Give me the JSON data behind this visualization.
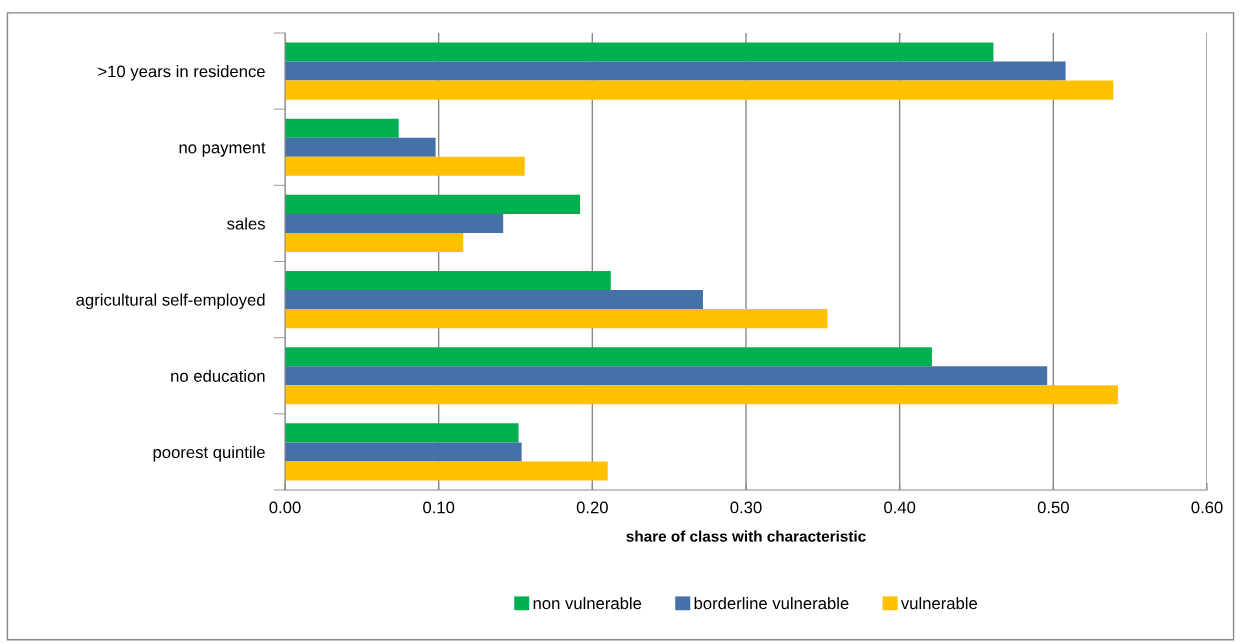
{
  "chart_data": {
    "type": "bar",
    "orientation": "horizontal",
    "xlabel": "share of class with characteristic",
    "categories": [
      ">10 years in residence",
      "no payment",
      "sales",
      "agricultural self-employed",
      "no education",
      "poorest quintile"
    ],
    "series": [
      {
        "name": "non vulnerable",
        "color": "#00b050",
        "values": [
          0.461,
          0.074,
          0.192,
          0.212,
          0.421,
          0.152
        ]
      },
      {
        "name": "borderline vulnerable",
        "color": "#4472a8",
        "values": [
          0.508,
          0.098,
          0.142,
          0.272,
          0.496,
          0.154
        ]
      },
      {
        "name": "vulnerable",
        "color": "#ffc000",
        "values": [
          0.539,
          0.156,
          0.116,
          0.353,
          0.542,
          0.21
        ]
      }
    ],
    "xlim": [
      0,
      0.6
    ],
    "xticks": [
      {
        "value": 0,
        "label": "0.00"
      },
      {
        "value": 0.1,
        "label": "0.10"
      },
      {
        "value": 0.2,
        "label": "0.20"
      },
      {
        "value": 0.3,
        "label": "0.30"
      },
      {
        "value": 0.4,
        "label": "0.40"
      },
      {
        "value": 0.5,
        "label": "0.50"
      },
      {
        "value": 0.6,
        "label": "0.60"
      }
    ],
    "grid": "x",
    "legend": "bottom"
  }
}
